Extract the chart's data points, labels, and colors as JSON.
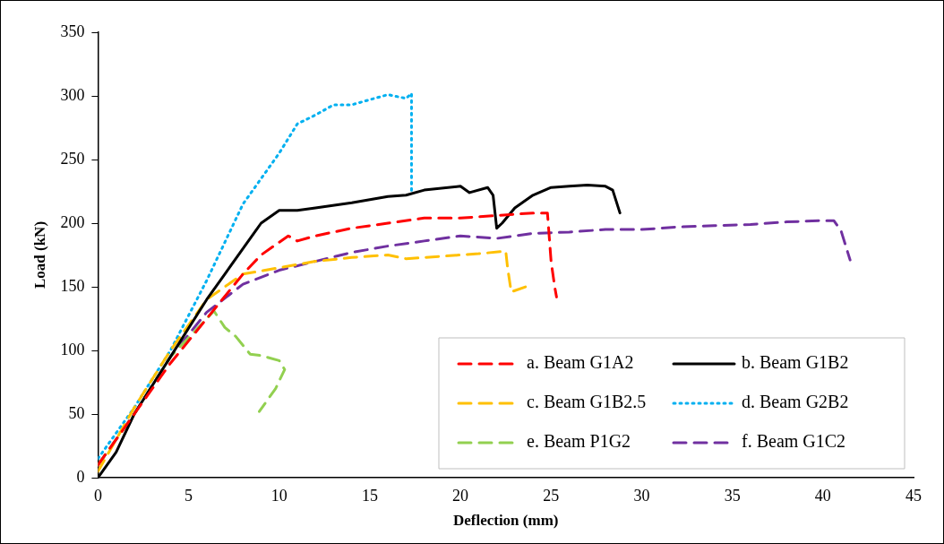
{
  "chart_data": {
    "type": "line",
    "xlabel": "Deflection (mm)",
    "ylabel": "Load (kN)",
    "xlim": [
      0,
      45
    ],
    "xticks": [
      0,
      5,
      10,
      15,
      20,
      25,
      30,
      35,
      40,
      45
    ],
    "ylim": [
      0,
      350
    ],
    "yticks": [
      0,
      50,
      100,
      150,
      200,
      250,
      300,
      350
    ],
    "grid": false,
    "legend": "bottom right",
    "marker": "none",
    "series": [
      {
        "name": "a. Beam G1A2",
        "color": "#ff0000",
        "line_style": "dashed",
        "x": [
          0,
          2,
          4,
          6,
          8,
          9,
          10,
          10.5,
          11,
          12,
          14,
          16,
          18,
          20,
          22,
          24,
          24.8,
          25,
          25.2,
          25.3
        ],
        "values": [
          10,
          50,
          90,
          125,
          160,
          175,
          185,
          190,
          186,
          190,
          196,
          200,
          204,
          204,
          206,
          208,
          208,
          170,
          150,
          142
        ]
      },
      {
        "name": "b. Beam G1B2",
        "color": "#000000",
        "line_style": "solid",
        "x": [
          0,
          1,
          2,
          4,
          6,
          7,
          8,
          9,
          10,
          11,
          12,
          14,
          16,
          17,
          18,
          20,
          20.5,
          21.5,
          21.8,
          22,
          22.3,
          23,
          24,
          25,
          26,
          27,
          28,
          28.4,
          28.8
        ],
        "values": [
          0,
          20,
          50,
          95,
          140,
          160,
          180,
          200,
          210,
          210,
          212,
          216,
          221,
          222,
          226,
          229,
          224,
          228,
          222,
          196,
          200,
          212,
          222,
          228,
          229,
          230,
          229,
          226,
          208
        ]
      },
      {
        "name": "c. Beam G1B2.5",
        "color": "#ffc000",
        "line_style": "dashed",
        "x": [
          0,
          2,
          4,
          6,
          8,
          10,
          12,
          14,
          16,
          17,
          19,
          21,
          22.5,
          22.6,
          22.8,
          23.6
        ],
        "values": [
          5,
          55,
          100,
          140,
          160,
          165,
          170,
          173,
          175,
          172,
          174,
          176,
          178,
          165,
          146,
          150
        ]
      },
      {
        "name": "d. Beam G2B2",
        "color": "#00b0f0",
        "line_style": "dotted",
        "x": [
          0,
          2,
          4,
          6,
          7,
          8,
          9,
          10,
          11,
          12,
          13,
          14,
          15,
          16,
          17,
          17.3,
          17.3
        ],
        "values": [
          15,
          55,
          100,
          155,
          185,
          215,
          235,
          255,
          278,
          285,
          293,
          293,
          297,
          301,
          298,
          302,
          224
        ]
      },
      {
        "name": "e. Beam P1G2",
        "color": "#92d050",
        "line_style": "dashed",
        "x": [
          0,
          2,
          4,
          6,
          6.4,
          7,
          7.6,
          8.4,
          9,
          10,
          10.3,
          9.8,
          8.9
        ],
        "values": [
          10,
          50,
          95,
          125,
          131,
          118,
          111,
          97,
          96,
          92,
          85,
          70,
          52
        ]
      },
      {
        "name": "f. Beam G1C2",
        "color": "#7030a0",
        "line_style": "dashed",
        "x": [
          0,
          2,
          4,
          6,
          8,
          10,
          12,
          14,
          16,
          18,
          20,
          22,
          24,
          26,
          28,
          30,
          32,
          34,
          36,
          38,
          40,
          40.6,
          41,
          41.5
        ],
        "values": [
          10,
          50,
          95,
          130,
          152,
          163,
          170,
          177,
          182,
          186,
          190,
          188,
          192,
          193,
          195,
          195,
          197,
          198,
          199,
          201,
          202,
          202,
          194,
          171
        ]
      }
    ]
  }
}
